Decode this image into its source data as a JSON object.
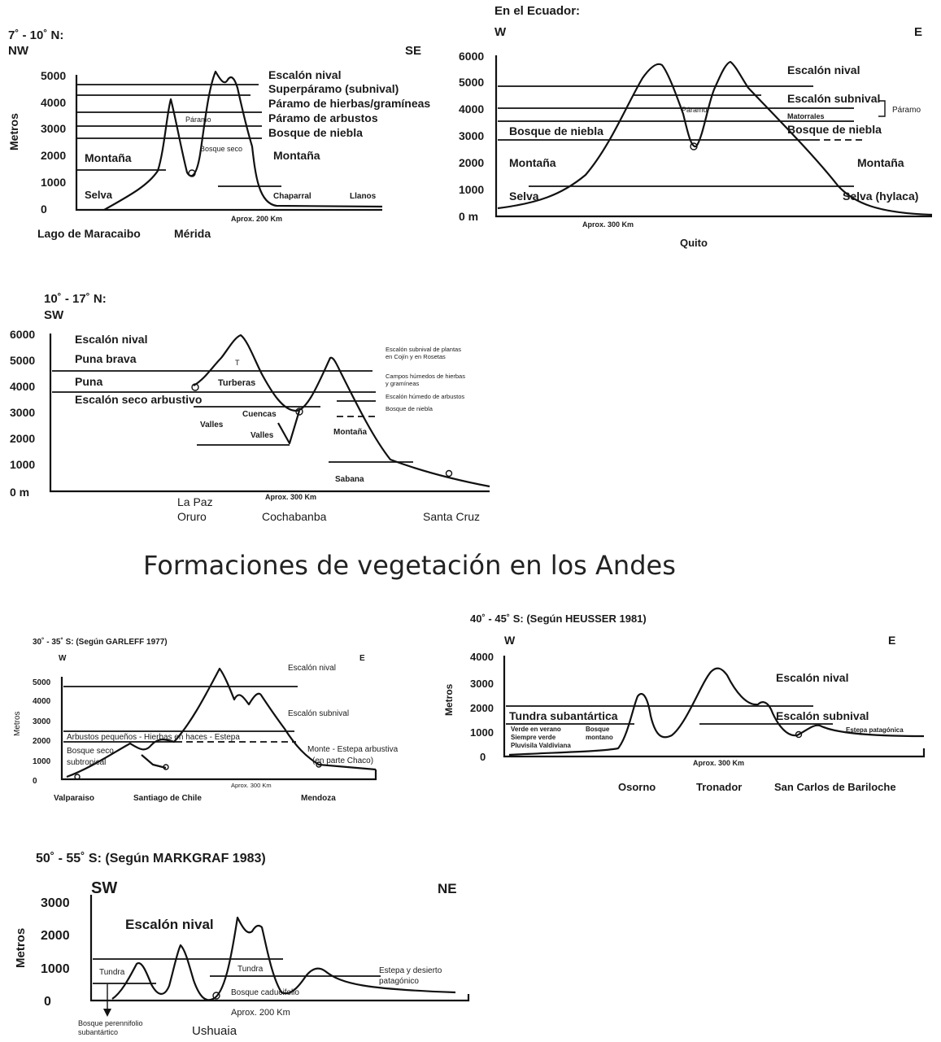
{
  "title": "Formaciones de vegetación en los Andes",
  "panels": {
    "p1": {
      "lat": "7˚ - 10˚ N:",
      "dir_left": "NW",
      "dir_right": "SE",
      "ylabel": "Metros",
      "ticks": [
        "5000",
        "4000",
        "3000",
        "2000",
        "1000",
        "0"
      ],
      "zones": [
        "Escalón nival",
        "Superpáramo (subnival)",
        "Páramo de hierbas/gramíneas",
        "Páramo de arbustos",
        "Bosque de niebla",
        "Montaña",
        "Montaña",
        "Selva",
        "Páramo",
        "Bosque seco",
        "Chaparral",
        "Llanos"
      ],
      "scale": "Aprox. 200 Km",
      "places": [
        "Lago de Maracaibo",
        "Mérida"
      ]
    },
    "p2": {
      "lat": "En el Ecuador:",
      "dir_left": "W",
      "dir_right": "E",
      "ticks": [
        "6000",
        "5000",
        "4000",
        "3000",
        "2000",
        "1000",
        "0 m"
      ],
      "zones": [
        "Escalón nival",
        "Escalón subnival",
        "Matorrales",
        "Páramo",
        "Páramo",
        "Bosque de niebla",
        "Bosque de niebla",
        "Montaña",
        "Montaña",
        "Selva",
        "Selva (hylaca)"
      ],
      "scale": "Aprox. 300 Km",
      "places": [
        "Quito"
      ]
    },
    "p3": {
      "lat": "10˚ - 17˚ N:",
      "dir_left": "SW",
      "ticks": [
        "6000",
        "5000",
        "4000",
        "3000",
        "2000",
        "1000",
        "0 m"
      ],
      "zones": [
        "Escalón nival",
        "Puna brava",
        "Puna",
        "Escalón seco arbustivo",
        "T",
        "Turberas",
        "Cuencas",
        "Valles",
        "Valles",
        "Montaña",
        "Sabana"
      ],
      "notes": [
        "Escalón subnival de plantas",
        "en Cojín y en Rosetas",
        "Campos húmedos de hierbas",
        "y gramíneas",
        "Escalón húmedo de arbustos",
        "Bosque de niebla"
      ],
      "scale": "Aprox. 300 Km",
      "places": [
        "La Paz",
        "Oruro",
        "Cochabanba",
        "Santa Cruz"
      ]
    },
    "p4": {
      "lat": "30˚ - 35˚ S: (Según GARLEFF 1977)",
      "dir_left": "W",
      "dir_right": "E",
      "ylabel": "Metros",
      "ticks": [
        "5000",
        "4000",
        "3000",
        "2000",
        "1000",
        "0"
      ],
      "zones": [
        "Escalón nival",
        "Escalón subnival",
        "Arbustos pequeños - Hierbas en haces - Estepa",
        "Bosque seco",
        "subtropical",
        "Monte - Estepa arbustiva",
        "(en parte Chaco)"
      ],
      "scale": "Aprox. 300 Km",
      "places": [
        "Valparaiso",
        "Santiago de Chile",
        "Mendoza"
      ]
    },
    "p5": {
      "lat": "40˚ - 45˚ S: (Según HEUSSER 1981)",
      "dir_left": "W",
      "dir_right": "E",
      "ylabel": "Metros",
      "ticks": [
        "4000",
        "3000",
        "2000",
        "1000",
        "0"
      ],
      "zones": [
        "Escalón nival",
        "Tundra subantártica",
        "Escalón subnival",
        "Verde en verano",
        "Siempre verde",
        "Pluvisila Valdiviana",
        "Bosque",
        "montano",
        "Estepa patagónica"
      ],
      "scale": "Aprox. 300 Km",
      "places": [
        "Osorno",
        "Tronador",
        "San Carlos de Bariloche"
      ]
    },
    "p6": {
      "lat": "50˚ - 55˚ S: (Según MARKGRAF 1983)",
      "dir_left": "SW",
      "dir_right": "NE",
      "ylabel": "Metros",
      "ticks": [
        "3000",
        "2000",
        "1000",
        "0"
      ],
      "zones": [
        "Escalón nival",
        "Tundra",
        "Tundra",
        "Bosque caducifolio",
        "Estepa y desierto",
        "patagónico",
        "Bosque perennifolio",
        "subantártico"
      ],
      "scale": "Aprox. 200 Km",
      "places": [
        "Ushuaia"
      ]
    }
  }
}
